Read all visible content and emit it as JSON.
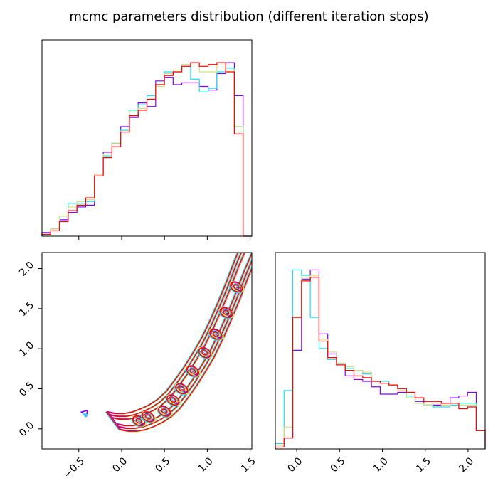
{
  "chart_data": {
    "title": "mcmc parameters distribution (different iteration stops)",
    "type": "corner",
    "series": [
      {
        "name": "",
        "color": "#8000ff"
      },
      {
        "name": "",
        "color": "#1ce1f1"
      },
      {
        "name": "",
        "color": "#d4dd80"
      },
      {
        "name": "",
        "color": "#ff0000"
      }
    ],
    "panels": {
      "hist_x": {
        "type": "step-histogram",
        "xlim": [
          -0.93,
          1.52
        ],
        "xticks": [
          -0.5,
          0.0,
          0.5,
          1.0,
          1.5
        ],
        "bin_edges": [
          -0.93,
          -0.828,
          -0.726,
          -0.624,
          -0.522,
          -0.42,
          -0.318,
          -0.215,
          -0.113,
          -0.011,
          0.091,
          0.193,
          0.295,
          0.397,
          0.499,
          0.601,
          0.703,
          0.805,
          0.907,
          1.01,
          1.112,
          1.214,
          1.316,
          1.418,
          1.52
        ],
        "counts": [
          [
            0.02,
            0.04,
            0.09,
            0.13,
            0.16,
            0.17,
            0.34,
            0.46,
            0.51,
            0.6,
            0.65,
            0.73,
            0.71,
            0.85,
            0.87,
            0.83,
            0.84,
            0.84,
            0.82,
            0.8,
            0.89,
            0.95,
            0.77,
            0.0
          ],
          [
            0.01,
            0.04,
            0.11,
            0.18,
            0.18,
            0.19,
            0.33,
            0.44,
            0.51,
            0.58,
            0.69,
            0.72,
            0.77,
            0.83,
            0.9,
            0.9,
            0.93,
            0.86,
            0.79,
            0.81,
            0.9,
            0.92,
            0.6,
            0.0
          ],
          [
            0.01,
            0.04,
            0.11,
            0.16,
            0.19,
            0.2,
            0.34,
            0.45,
            0.51,
            0.57,
            0.68,
            0.7,
            0.75,
            0.82,
            0.89,
            0.91,
            0.94,
            0.95,
            0.9,
            0.9,
            0.95,
            0.91,
            0.6,
            0.0
          ],
          [
            0.01,
            0.03,
            0.08,
            0.14,
            0.17,
            0.21,
            0.33,
            0.43,
            0.49,
            0.57,
            0.66,
            0.69,
            0.75,
            0.83,
            0.88,
            0.9,
            0.93,
            0.95,
            0.93,
            0.94,
            0.95,
            0.9,
            0.56,
            0.0
          ]
        ]
      },
      "scatter_xy": {
        "type": "contour",
        "xlim": [
          -0.93,
          1.52
        ],
        "ylim": [
          -0.25,
          2.2
        ],
        "xticks": [
          -0.5,
          0.0,
          0.5,
          1.0,
          1.5
        ],
        "yticks": [
          0.0,
          0.5,
          1.0,
          1.5,
          2.0
        ],
        "ridge": [
          [
            -0.1,
            0.1
          ],
          [
            0.0,
            0.08
          ],
          [
            0.1,
            0.08
          ],
          [
            0.2,
            0.1
          ],
          [
            0.3,
            0.14
          ],
          [
            0.4,
            0.19
          ],
          [
            0.5,
            0.26
          ],
          [
            0.6,
            0.36
          ],
          [
            0.7,
            0.5
          ],
          [
            0.8,
            0.65
          ],
          [
            0.9,
            0.82
          ],
          [
            1.0,
            1.0
          ],
          [
            1.1,
            1.22
          ],
          [
            1.2,
            1.46
          ],
          [
            1.3,
            1.72
          ],
          [
            1.4,
            2.0
          ],
          [
            1.5,
            2.25
          ]
        ],
        "levels": [
          0.04,
          0.075,
          0.11
        ],
        "blobs": [
          [
            0.2,
            0.1
          ],
          [
            0.31,
            0.15
          ],
          [
            0.5,
            0.22
          ],
          [
            0.6,
            0.36
          ],
          [
            0.7,
            0.5
          ],
          [
            0.83,
            0.72
          ],
          [
            0.97,
            0.95
          ],
          [
            1.1,
            1.18
          ],
          [
            1.22,
            1.45
          ],
          [
            1.34,
            1.77
          ]
        ],
        "outlier": [
          -0.42,
          0.2
        ]
      },
      "hist_y": {
        "type": "step-histogram",
        "xlim": [
          -0.25,
          2.2
        ],
        "xticks": [
          0.0,
          0.5,
          1.0,
          1.5,
          2.0
        ],
        "bin_edges": [
          -0.25,
          -0.148,
          -0.046,
          0.056,
          0.158,
          0.26,
          0.362,
          0.464,
          0.566,
          0.668,
          0.77,
          0.872,
          0.974,
          1.076,
          1.178,
          1.28,
          1.382,
          1.484,
          1.586,
          1.688,
          1.79,
          1.892,
          1.994,
          2.096,
          2.2
        ],
        "counts": [
          [
            0.03,
            0.06,
            0.54,
            0.93,
            0.98,
            0.63,
            0.52,
            0.46,
            0.4,
            0.38,
            0.37,
            0.34,
            0.3,
            0.3,
            0.31,
            0.29,
            0.26,
            0.24,
            0.24,
            0.25,
            0.28,
            0.29,
            0.31,
            0.1
          ],
          [
            0.03,
            0.32,
            0.98,
            0.95,
            0.72,
            0.55,
            0.49,
            0.46,
            0.44,
            0.43,
            0.41,
            0.37,
            0.37,
            0.35,
            0.33,
            0.29,
            0.25,
            0.24,
            0.23,
            0.23,
            0.24,
            0.25,
            0.25,
            0.1
          ],
          [
            0.02,
            0.12,
            0.72,
            0.94,
            0.95,
            0.6,
            0.53,
            0.47,
            0.45,
            0.43,
            0.42,
            0.37,
            0.36,
            0.35,
            0.32,
            0.28,
            0.25,
            0.24,
            0.25,
            0.24,
            0.25,
            0.24,
            0.24,
            0.1
          ],
          [
            0.01,
            0.06,
            0.72,
            0.92,
            0.94,
            0.59,
            0.5,
            0.46,
            0.43,
            0.4,
            0.39,
            0.37,
            0.36,
            0.35,
            0.33,
            0.31,
            0.28,
            0.26,
            0.26,
            0.25,
            0.25,
            0.22,
            0.23,
            0.1
          ]
        ]
      }
    }
  }
}
